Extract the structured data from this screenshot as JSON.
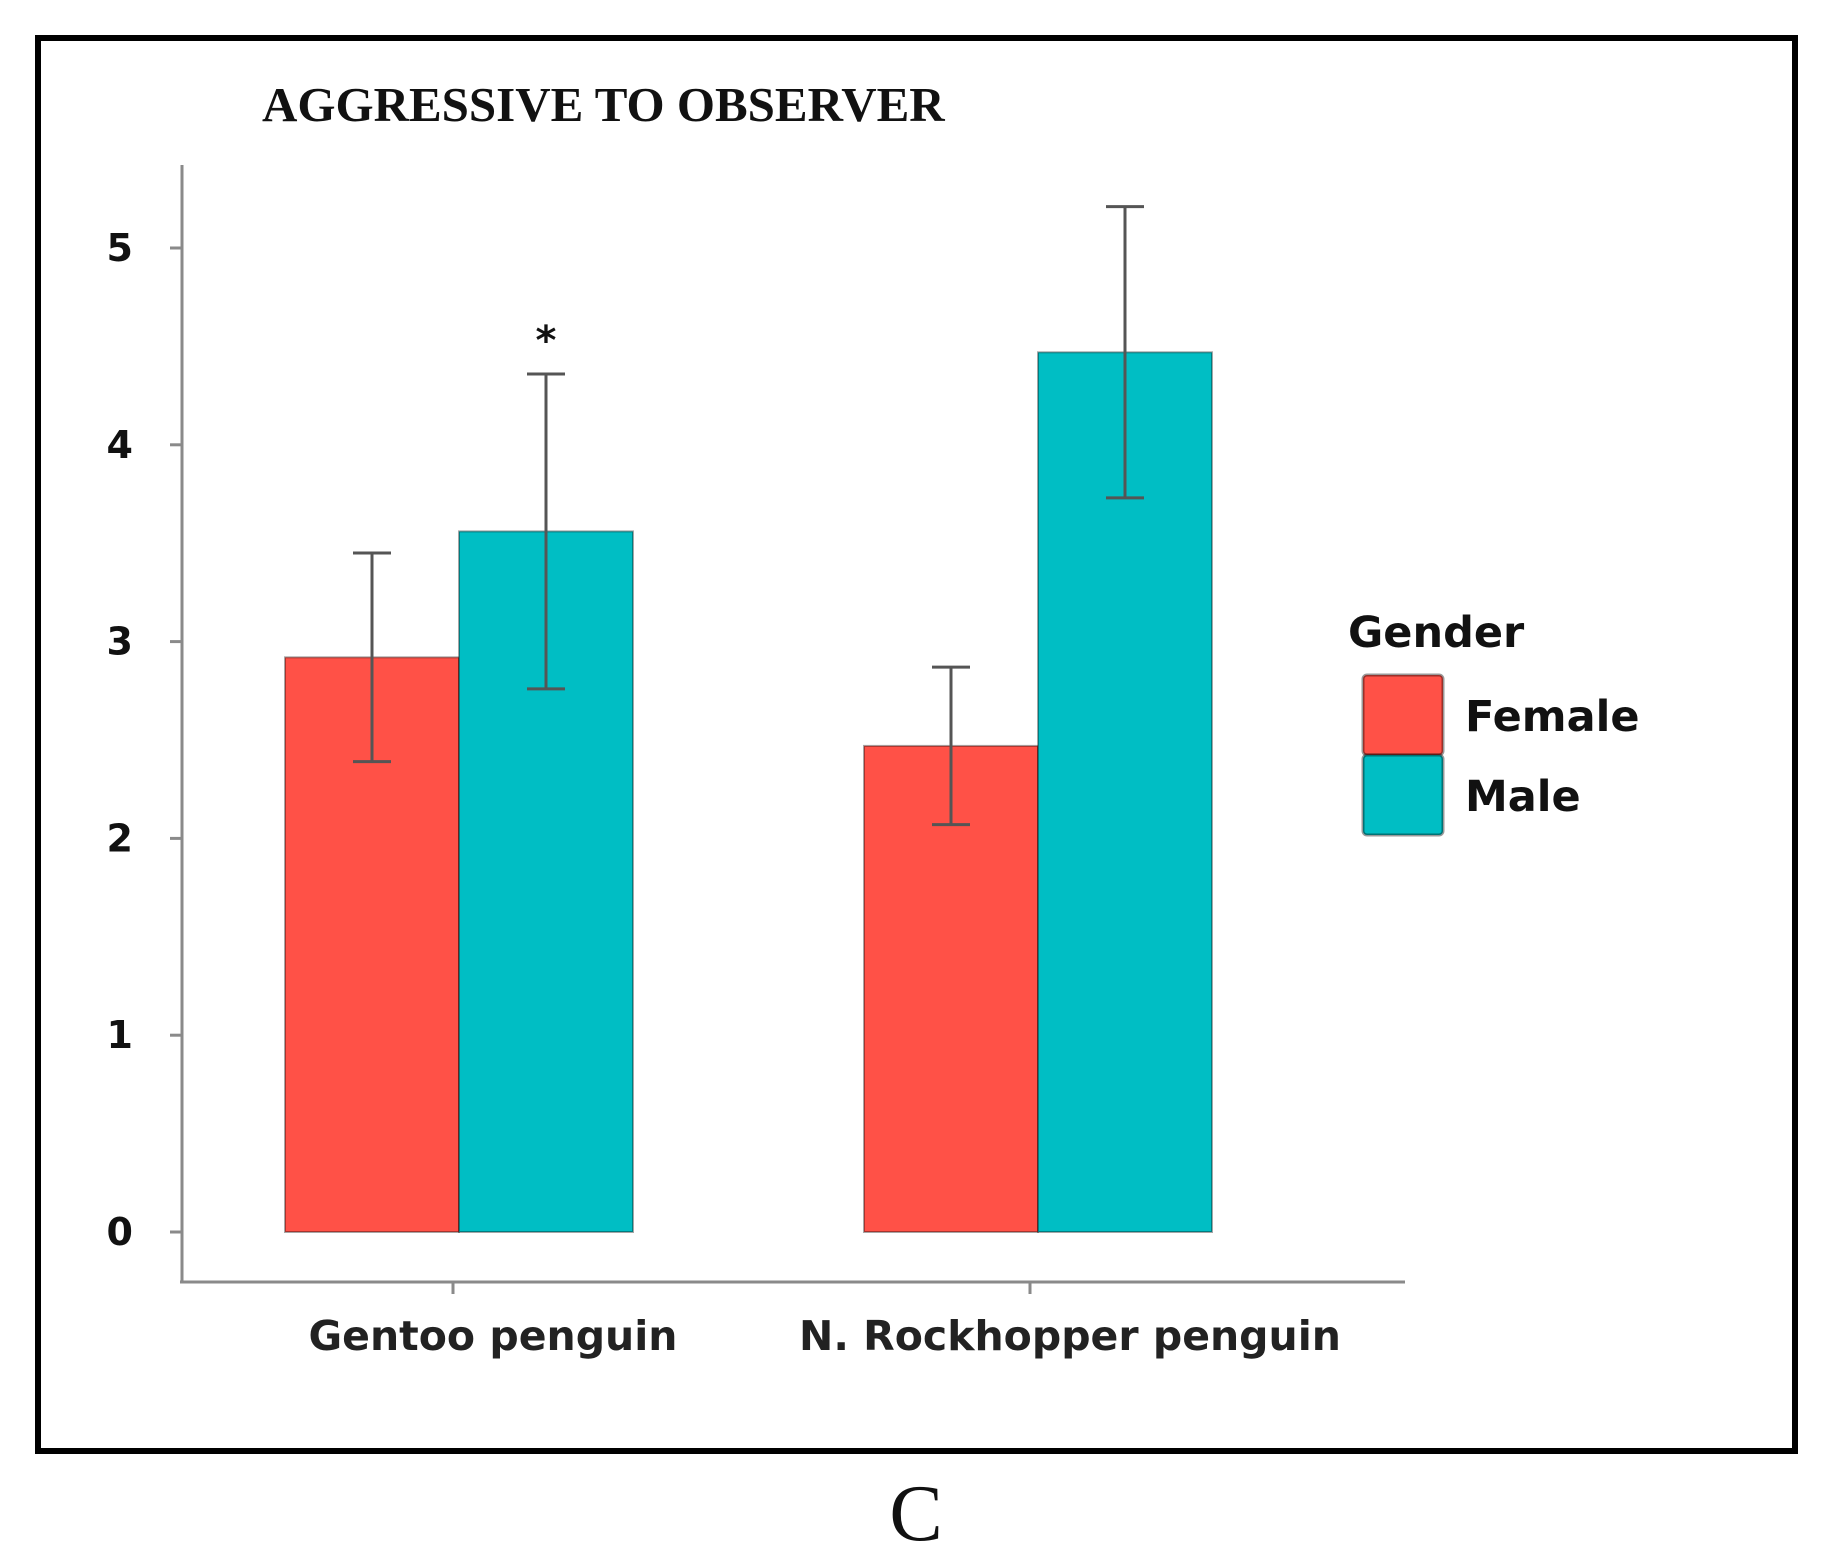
{
  "chart_data": {
    "type": "bar",
    "title": "AGGRESSIVE TO OBSERVER",
    "categories": [
      "Gentoo penguin",
      "N. Rockhopper penguin"
    ],
    "series": [
      {
        "name": "Female",
        "color": "#ff5147",
        "values": [
          2.92,
          2.47
        ],
        "error_low": [
          2.39,
          2.07
        ],
        "error_high": [
          3.45,
          2.87
        ]
      },
      {
        "name": "Male",
        "color": "#00bec4",
        "values": [
          3.56,
          4.47
        ],
        "error_low": [
          2.76,
          3.73
        ],
        "error_high": [
          4.36,
          5.21
        ]
      }
    ],
    "yticks": [
      0,
      1,
      2,
      3,
      4,
      5
    ],
    "ylim": [
      0,
      5.4
    ],
    "xlabel": "",
    "ylabel": "",
    "legend": {
      "title": "Gender",
      "position": "right"
    },
    "annotations": [
      {
        "text": "*",
        "category": "Gentoo penguin",
        "series": "Male"
      }
    ]
  },
  "panel_label": "C"
}
